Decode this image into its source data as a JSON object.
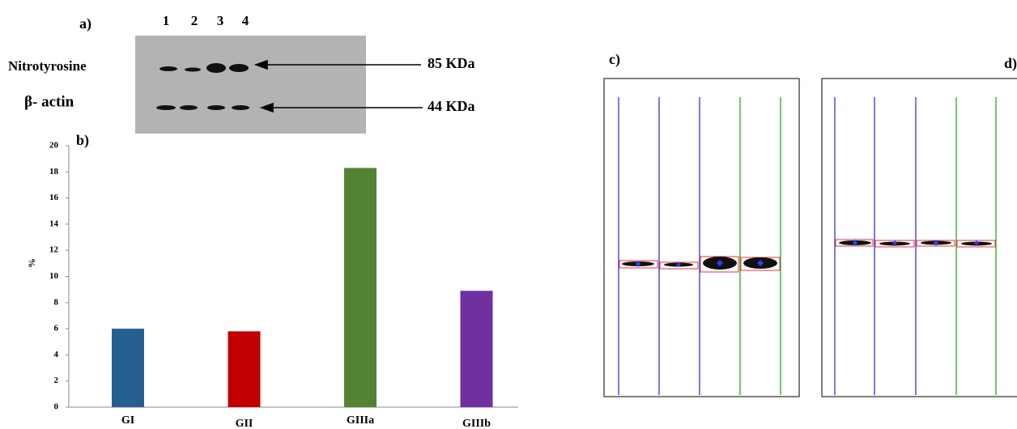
{
  "blot": {
    "label": "a)",
    "lanes": [
      "1",
      "2",
      "3",
      "4"
    ],
    "rows": [
      {
        "name": "Nitrotyrosine",
        "size": "85 KDa"
      },
      {
        "name": "β- actin",
        "size": "44 KDa"
      }
    ]
  },
  "densitometry": {
    "panels": [
      "c)",
      "d)"
    ]
  },
  "chart_data": {
    "type": "bar",
    "title": "b)",
    "y_label": "%",
    "categories": [
      "GI",
      "GII",
      "GIIIa",
      "GIIIb"
    ],
    "values": [
      6.0,
      5.8,
      18.3,
      8.9
    ],
    "colors": [
      "#255e91",
      "#c00000",
      "#548235",
      "#7030a0"
    ],
    "ylim": [
      0,
      20
    ],
    "yticks": [
      0,
      2,
      4,
      6,
      8,
      10,
      12,
      14,
      16,
      18,
      20
    ],
    "grid": false
  }
}
